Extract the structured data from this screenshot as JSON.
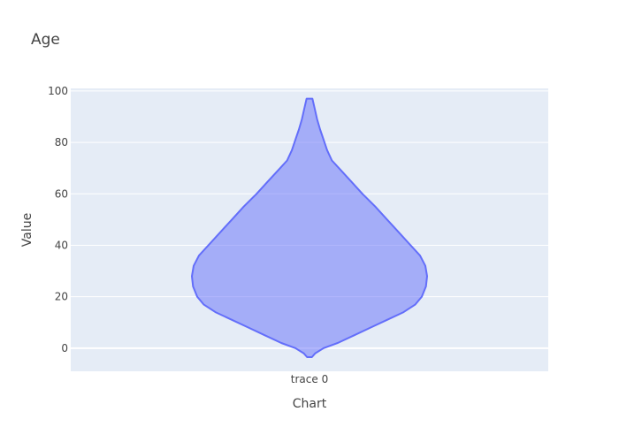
{
  "chart_data": {
    "type": "violin",
    "title": "Age",
    "xlabel": "Chart",
    "ylabel": "Value",
    "categories": [
      "trace 0"
    ],
    "ylim": [
      -9,
      101
    ],
    "yticks": [
      0,
      20,
      40,
      60,
      80,
      100
    ],
    "grid": true,
    "legend": "none",
    "series": [
      {
        "category": "trace 0",
        "min": -3.5,
        "max": 97,
        "density": [
          [
            -3.5,
            0.02
          ],
          [
            -2,
            0.05
          ],
          [
            0,
            0.12
          ],
          [
            2,
            0.24
          ],
          [
            5,
            0.38
          ],
          [
            8,
            0.52
          ],
          [
            11,
            0.66
          ],
          [
            14,
            0.8
          ],
          [
            17,
            0.9
          ],
          [
            20,
            0.955
          ],
          [
            24,
            0.99
          ],
          [
            28,
            1.0
          ],
          [
            32,
            0.985
          ],
          [
            36,
            0.94
          ],
          [
            40,
            0.86
          ],
          [
            45,
            0.76
          ],
          [
            50,
            0.66
          ],
          [
            55,
            0.56
          ],
          [
            60,
            0.45
          ],
          [
            65,
            0.35
          ],
          [
            70,
            0.25
          ],
          [
            73,
            0.19
          ],
          [
            77,
            0.15
          ],
          [
            81,
            0.12
          ],
          [
            85,
            0.09
          ],
          [
            89,
            0.065
          ],
          [
            93,
            0.045
          ],
          [
            97,
            0.025
          ]
        ]
      }
    ],
    "colors": {
      "fill": "#636efa",
      "line": "#636efa",
      "plot_bg": "#e5ecf6",
      "grid": "#ffffff"
    }
  }
}
